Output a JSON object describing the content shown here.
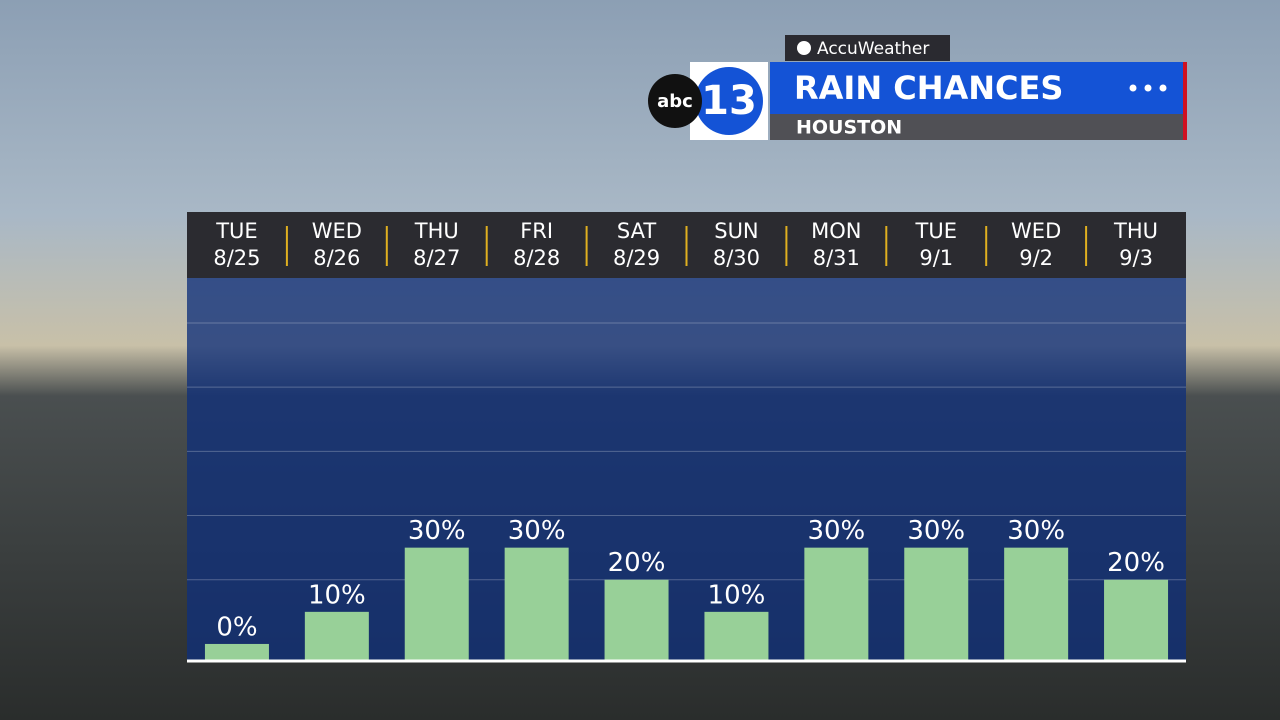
{
  "branding": {
    "provider": "AccuWeather",
    "network": "abc",
    "channel": "13"
  },
  "chart_data": {
    "type": "bar",
    "title": "RAIN CHANCES",
    "subtitle": "HOUSTON",
    "categories": [
      [
        "TUE",
        "8/25"
      ],
      [
        "WED",
        "8/26"
      ],
      [
        "THU",
        "8/27"
      ],
      [
        "FRI",
        "8/28"
      ],
      [
        "SAT",
        "8/29"
      ],
      [
        "SUN",
        "8/30"
      ],
      [
        "MON",
        "8/31"
      ],
      [
        "TUE",
        "9/1"
      ],
      [
        "WED",
        "9/2"
      ],
      [
        "THU",
        "9/3"
      ]
    ],
    "values": [
      0,
      10,
      30,
      30,
      20,
      10,
      30,
      30,
      30,
      20
    ],
    "value_labels": [
      "0%",
      "10%",
      "30%",
      "30%",
      "20%",
      "10%",
      "30%",
      "30%",
      "30%",
      "20%"
    ],
    "color": "#98d098",
    "ylim": [
      -5,
      114
    ],
    "yticks": [
      20,
      40,
      60,
      80,
      100
    ],
    "grid": true
  }
}
